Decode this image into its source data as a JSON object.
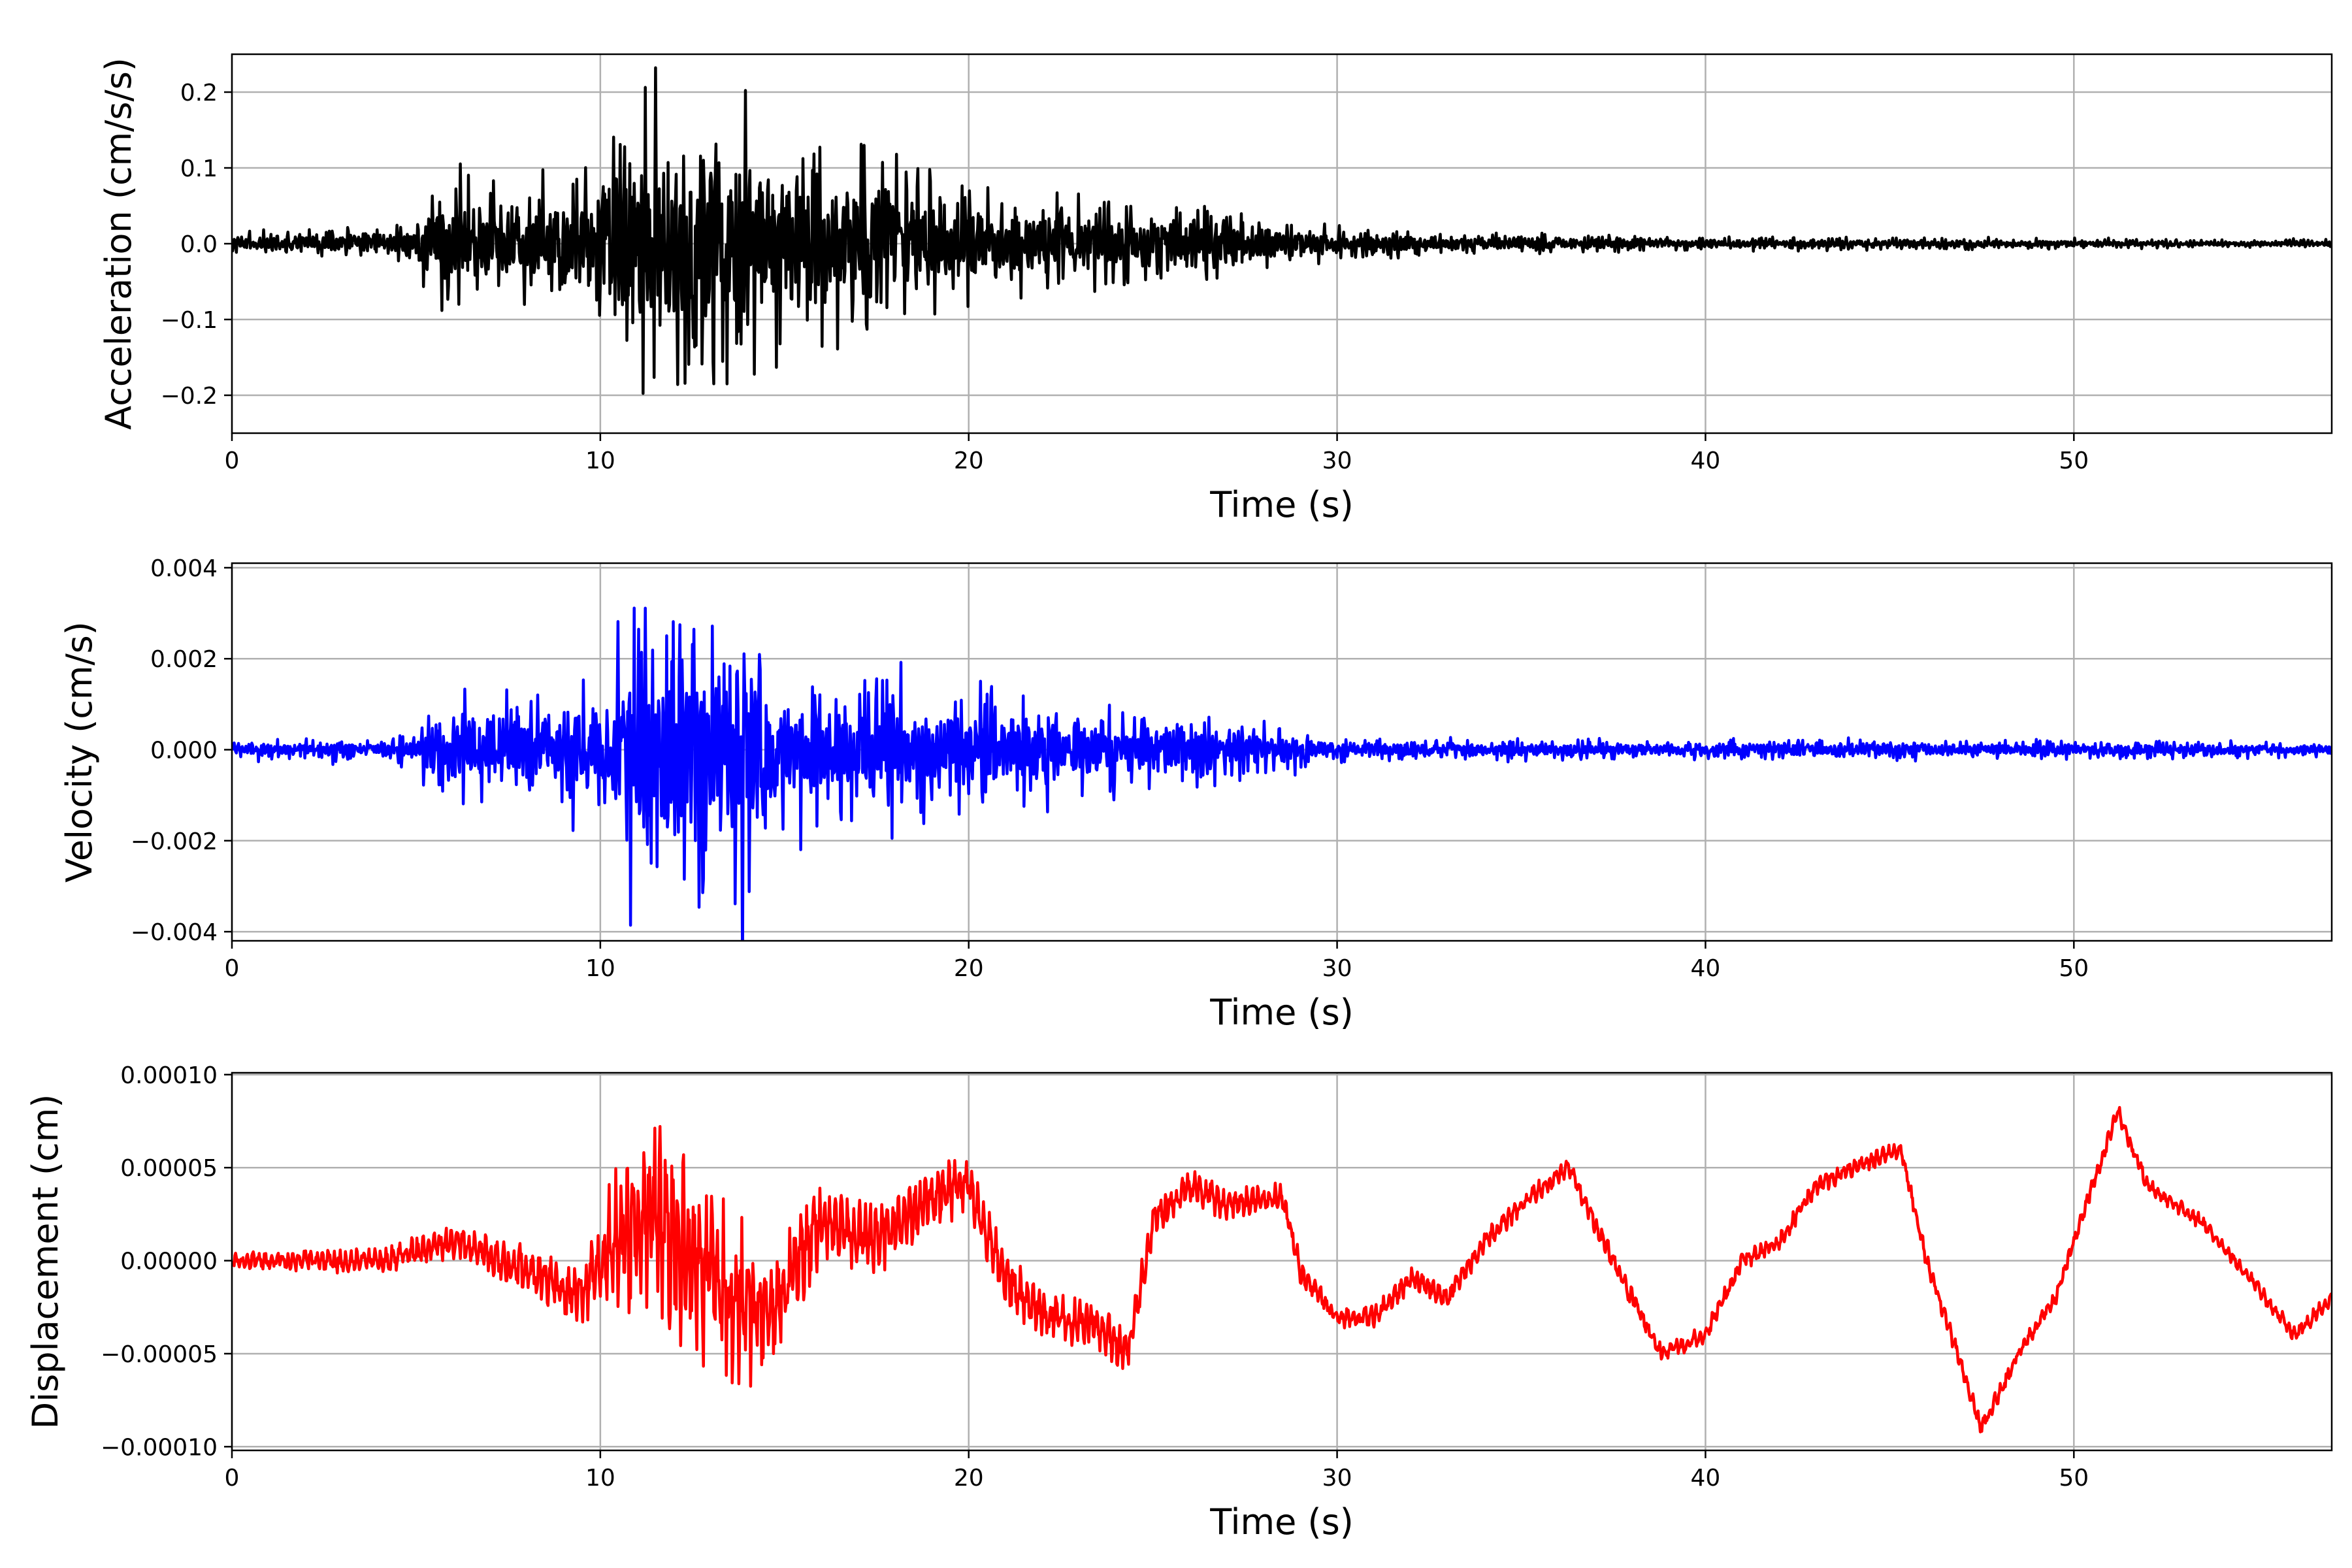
{
  "chart_data": [
    {
      "type": "line",
      "xlabel": "Time (s)",
      "ylabel": "Acceleration (cm/s/s)",
      "xlim": [
        0,
        57
      ],
      "ylim": [
        -0.25,
        0.25
      ],
      "x_ticks": [
        0,
        10,
        20,
        30,
        40,
        50
      ],
      "x_tick_labels": [
        "0",
        "10",
        "20",
        "30",
        "40",
        "50"
      ],
      "y_ticks": [
        -0.2,
        -0.1,
        0.0,
        0.1,
        0.2
      ],
      "y_tick_labels": [
        "−0.2",
        "−0.1",
        "0.0",
        "0.1",
        "0.2"
      ],
      "grid": true,
      "series": [
        {
          "color": "#000000",
          "envelope": {
            "t": [
              0,
              5,
              5.5,
              7,
              9,
              10,
              10.8,
              12,
              13,
              13.8,
              15,
              17,
              20,
              25,
              28,
              30,
              35,
              40,
              45,
              50,
              57
            ],
            "amp": [
              0.012,
              0.025,
              0.09,
              0.07,
              0.08,
              0.12,
              0.23,
              0.17,
              0.2,
              0.21,
              0.12,
              0.11,
              0.07,
              0.045,
              0.035,
              0.018,
              0.012,
              0.009,
              0.007,
              0.006,
              0.005
            ]
          }
        }
      ]
    },
    {
      "type": "line",
      "xlabel": "Time (s)",
      "ylabel": "Velocity (cm/s)",
      "xlim": [
        0,
        57
      ],
      "ylim": [
        -0.0042,
        0.0041
      ],
      "x_ticks": [
        0,
        10,
        20,
        30,
        40,
        50
      ],
      "x_tick_labels": [
        "0",
        "10",
        "20",
        "30",
        "40",
        "50"
      ],
      "y_ticks": [
        -0.004,
        -0.002,
        0.0,
        0.002,
        0.004
      ],
      "y_tick_labels": [
        "−0.004",
        "−0.002",
        "0.000",
        "0.002",
        "0.004"
      ],
      "grid": true,
      "series": [
        {
          "color": "#0000ff",
          "envelope": {
            "t": [
              0,
              5,
              5.5,
              7,
              9,
              10,
              10.8,
              12,
              13,
              13.8,
              15,
              17,
              20,
              25,
              28,
              30,
              35,
              40,
              45,
              50,
              57
            ],
            "amp": [
              0.0002,
              0.0003,
              0.0015,
              0.0011,
              0.0012,
              0.0016,
              0.0031,
              0.0028,
              0.0032,
              0.0038,
              0.0017,
              0.0016,
              0.0014,
              0.0008,
              0.0006,
              0.00025,
              0.00022,
              0.0002,
              0.00022,
              0.0002,
              0.00015
            ]
          }
        }
      ]
    },
    {
      "type": "line",
      "xlabel": "Time (s)",
      "ylabel": "Displacement (cm)",
      "xlim": [
        0,
        57
      ],
      "ylim": [
        -0.000102,
        0.000101
      ],
      "x_ticks": [
        0,
        10,
        20,
        30,
        40,
        50
      ],
      "x_tick_labels": [
        "0",
        "10",
        "20",
        "30",
        "40",
        "50"
      ],
      "y_ticks": [
        -0.0001,
        -5e-05,
        0.0,
        5e-05,
        0.0001
      ],
      "y_tick_labels": [
        "−0.00010",
        "−0.00005",
        "0.00000",
        "0.00005",
        "0.00010"
      ],
      "grid": true,
      "series": [
        {
          "color": "#ff0000",
          "baseline": {
            "t": [
              0,
              2,
              4,
              6,
              8,
              9.5,
              10.5,
              11.5,
              12.5,
              13.5,
              14.5,
              16,
              17.5,
              19,
              20,
              21,
              22,
              23.5,
              24.3,
              25,
              26,
              27,
              28.5,
              29,
              30,
              31,
              32,
              33,
              34,
              35,
              36.3,
              37,
              38,
              38.8,
              40,
              41,
              42,
              43,
              44,
              45.3,
              46,
              47,
              47.5,
              48.5,
              49.5,
              50.5,
              51.2,
              52,
              53.5,
              55,
              56,
              57
            ],
            "y": [
              0.0,
              0.0,
              0.0,
              1e-05,
              -5e-06,
              -2e-05,
              1.5e-05,
              2e-05,
              0.0,
              -2e-05,
              -3e-05,
              2e-05,
              1e-05,
              3.5e-05,
              4e-05,
              -1e-05,
              -3e-05,
              -3.5e-05,
              -5e-05,
              2e-05,
              4e-05,
              3e-05,
              3.5e-05,
              -5e-06,
              -3e-05,
              -3e-05,
              -1e-05,
              -2e-05,
              1e-05,
              3e-05,
              5e-05,
              2e-05,
              -2e-05,
              -5e-05,
              -4e-05,
              0.0,
              1e-05,
              4e-05,
              5e-05,
              6e-05,
              0.0,
              -6e-05,
              -9e-05,
              -5e-05,
              -2e-05,
              4e-05,
              8e-05,
              4e-05,
              2e-05,
              -1.5e-05,
              -4e-05,
              -2e-05
            ]
          },
          "noise": {
            "t": [
              0,
              5,
              9.5,
              10.5,
              12,
              13.5,
              14.5,
              16,
              20,
              24,
              25,
              30,
              40,
              57
            ],
            "amp": [
              4e-06,
              8e-06,
              1.5e-05,
              4e-05,
              5.5e-05,
              5e-05,
              3e-05,
              2e-05,
              1.5e-05,
              1.2e-05,
              1e-05,
              6e-06,
              5e-06,
              4e-06
            ]
          }
        }
      ]
    }
  ]
}
